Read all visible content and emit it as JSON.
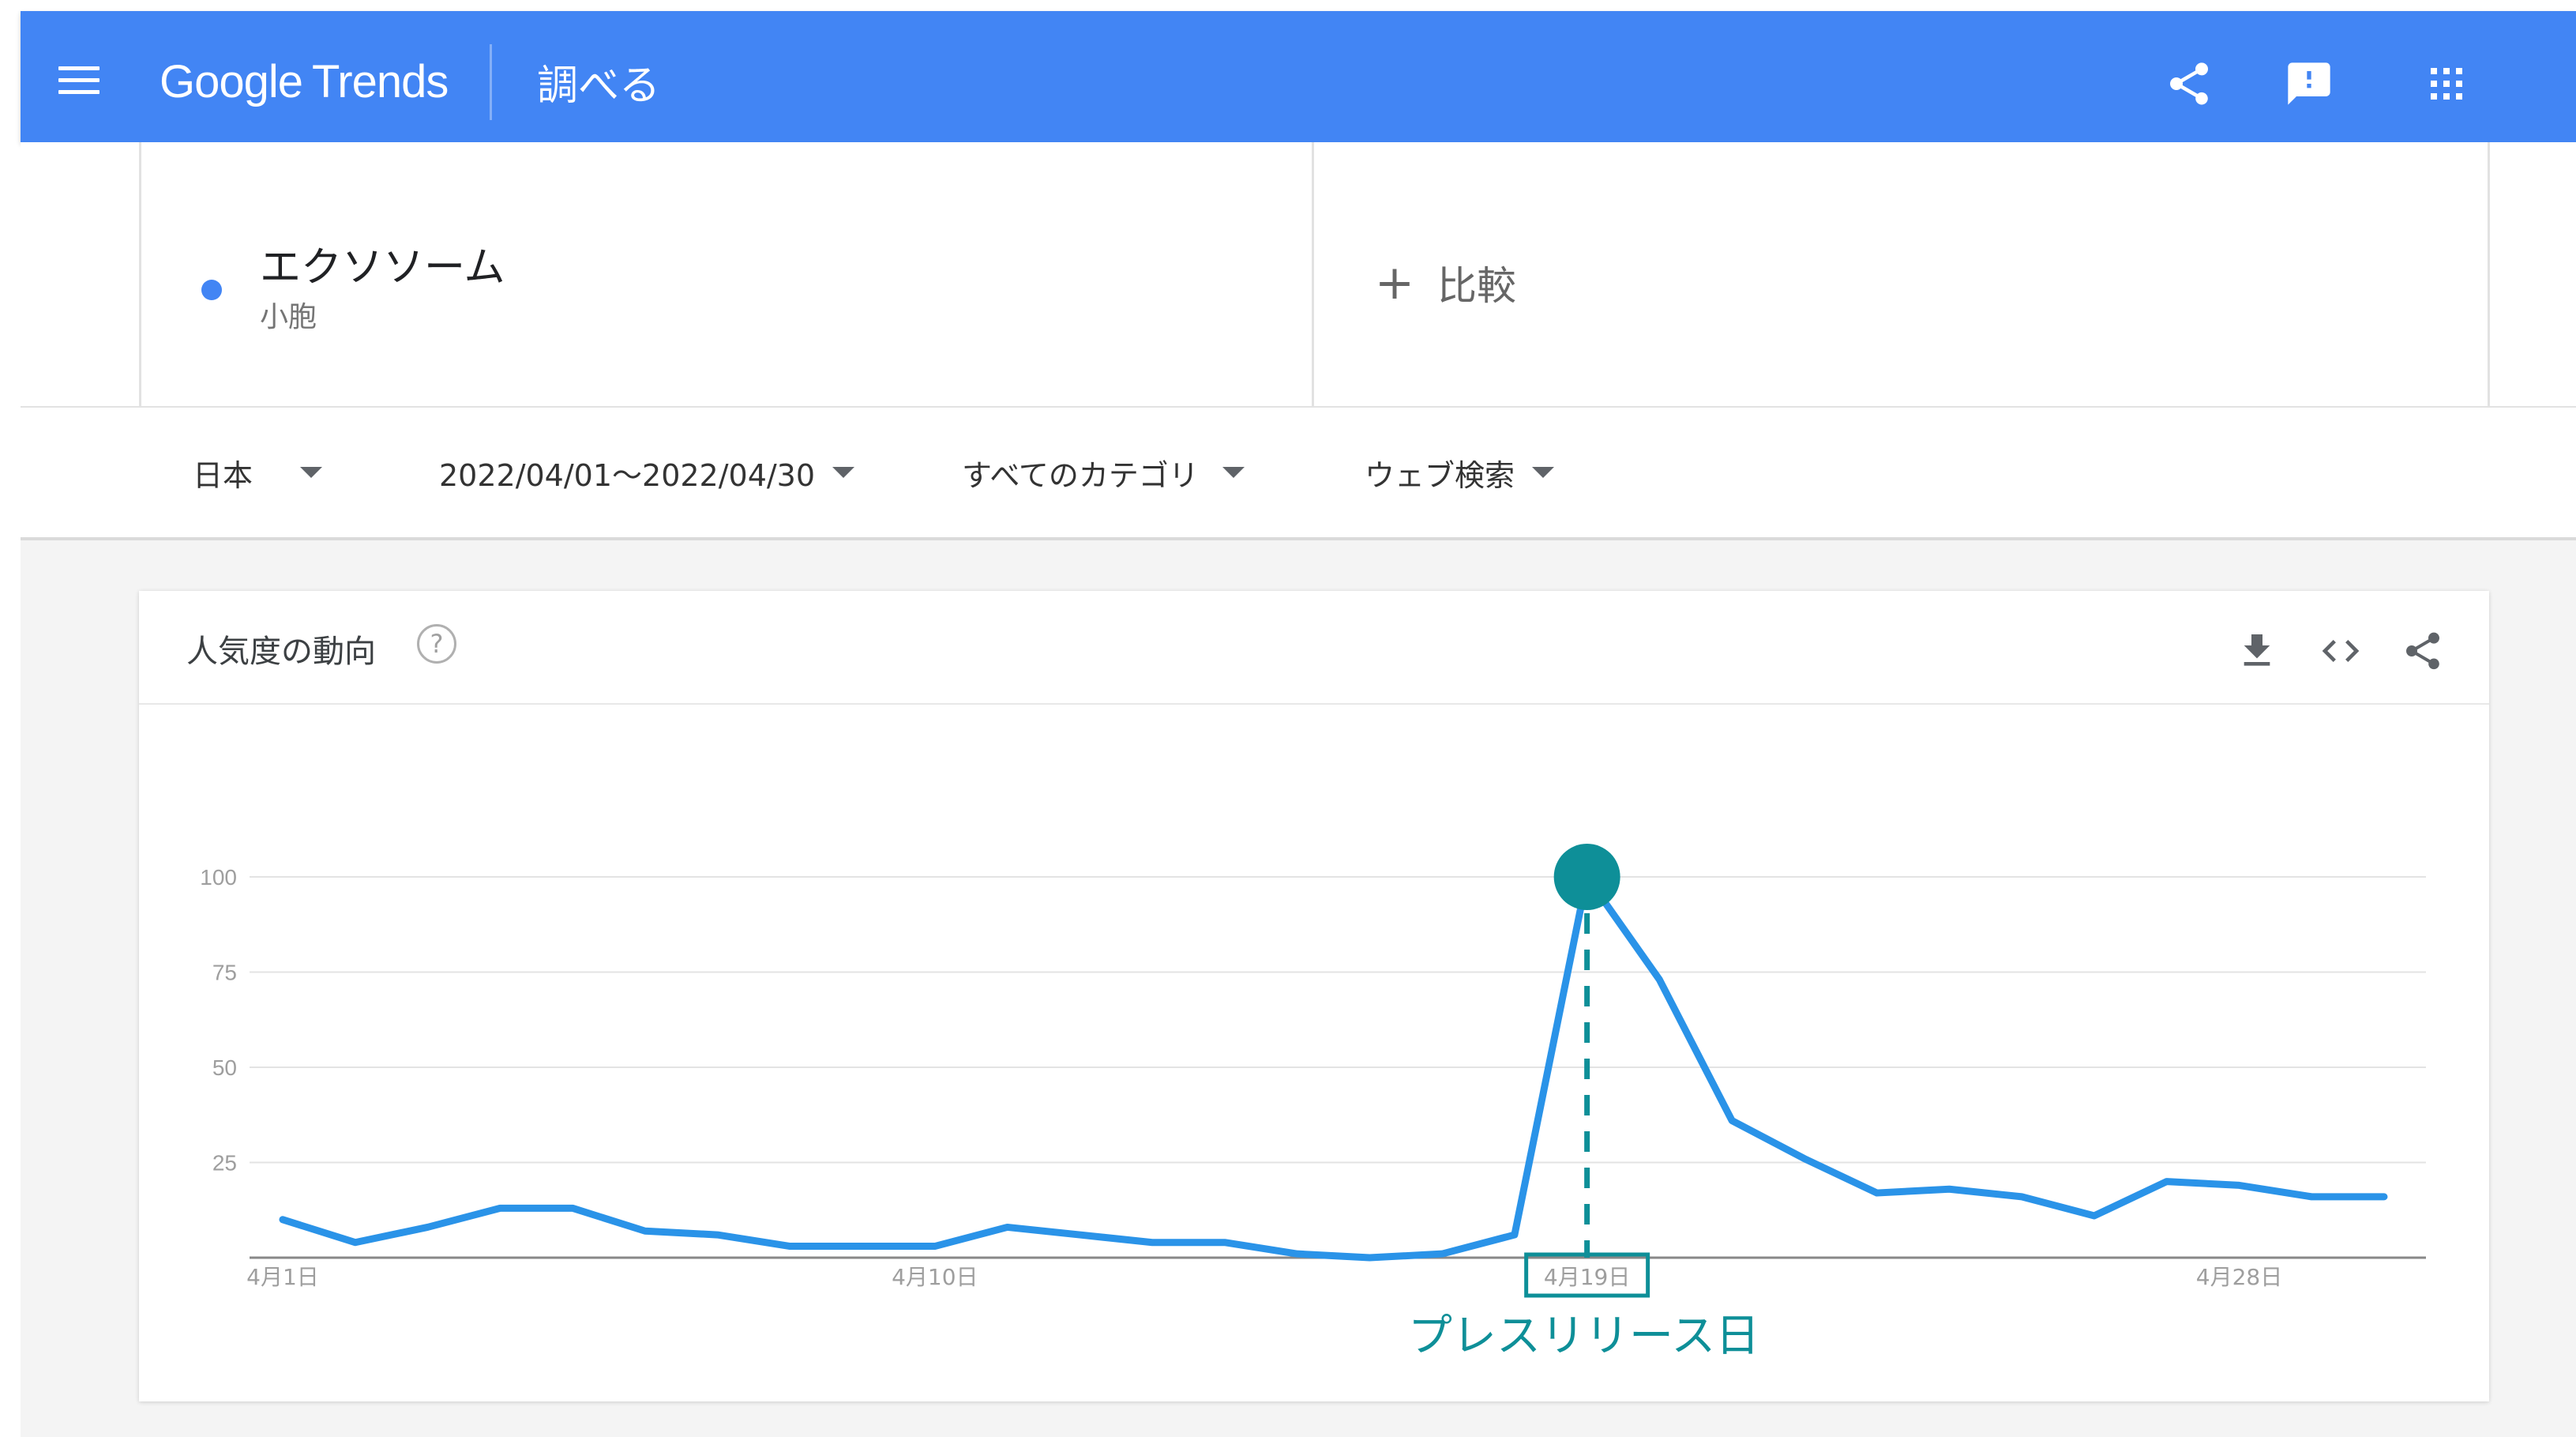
{
  "colors": {
    "brand": "#4285f4",
    "line": "#2a93e8",
    "accent": "#0e8f98",
    "grid": "#e3e3e3",
    "axis": "#888888"
  },
  "header": {
    "menu_icon": "hamburger-menu-icon",
    "logo_google": "Google",
    "logo_trends": "Trends",
    "title": "調べる",
    "icons": [
      "share-icon",
      "feedback-icon",
      "apps-grid-icon"
    ]
  },
  "search_term": {
    "name": "エクソソーム",
    "type": "小胞"
  },
  "compare": {
    "label": "比較"
  },
  "filters": [
    {
      "label": "日本"
    },
    {
      "label": "2022/04/01～2022/04/30"
    },
    {
      "label": "すべてのカテゴリ"
    },
    {
      "label": "ウェブ検索"
    }
  ],
  "card": {
    "title": "人気度の動向",
    "help": "?",
    "icons": [
      "download-icon",
      "embed-code-icon",
      "share-icon"
    ]
  },
  "chart_data": {
    "type": "line",
    "title": "",
    "xlabel": "",
    "ylabel": "",
    "ylim": [
      0,
      100
    ],
    "yticks": [
      25,
      50,
      75,
      100
    ],
    "xticks": [
      {
        "label": "4月1日",
        "day": 1
      },
      {
        "label": "4月10日",
        "day": 10
      },
      {
        "label": "4月19日",
        "day": 19
      },
      {
        "label": "4月28日",
        "day": 28
      }
    ],
    "x": [
      1,
      2,
      3,
      4,
      5,
      6,
      7,
      8,
      9,
      10,
      11,
      12,
      13,
      14,
      15,
      16,
      17,
      18,
      19,
      20,
      21,
      22,
      23,
      24,
      25,
      26,
      27,
      28,
      29,
      30
    ],
    "values": [
      10,
      4,
      8,
      13,
      13,
      7,
      6,
      3,
      3,
      3,
      8,
      6,
      4,
      4,
      1,
      0,
      1,
      6,
      100,
      73,
      36,
      26,
      17,
      18,
      16,
      11,
      20,
      19,
      16,
      16
    ],
    "grid": true,
    "highlight": {
      "day": 19,
      "value": 100,
      "tick_label": "4月19日"
    },
    "annotation": "プレスリリース日"
  }
}
